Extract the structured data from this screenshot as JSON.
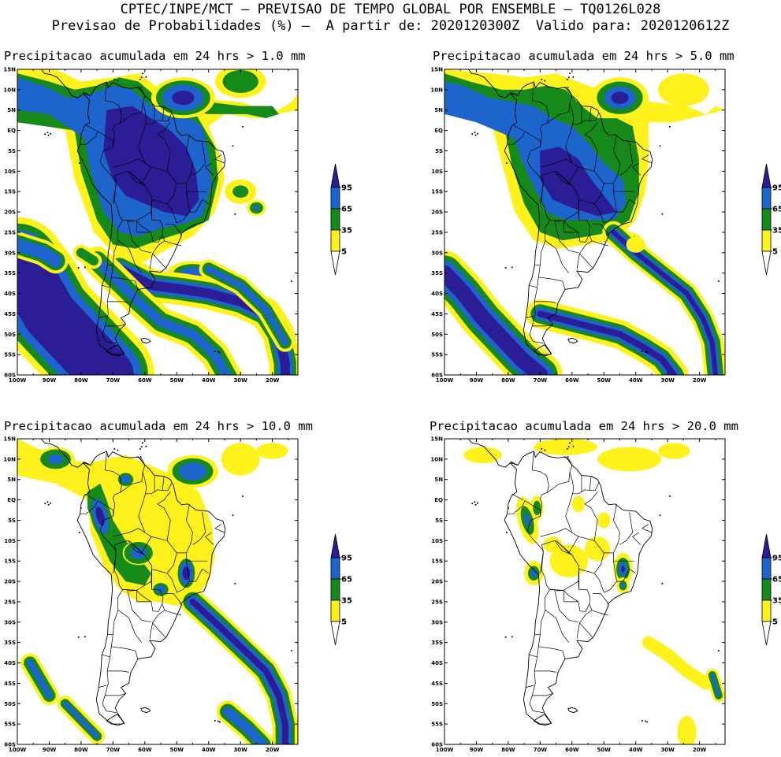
{
  "header": {
    "line1": "CPTEC/INPE/MCT – PREVISAO DE TEMPO GLOBAL POR ENSEMBLE – TQ0126L028",
    "line2": "Previsao de Probabilidades (%) –  A partir de: 2020120300Z  Valido para: 2020120612Z"
  },
  "axes": {
    "lat_labels": [
      "15N",
      "10N",
      "5N",
      "EQ",
      "5S",
      "10S",
      "15S",
      "20S",
      "25S",
      "30S",
      "35S",
      "40S",
      "45S",
      "50S",
      "55S",
      "60S"
    ],
    "lon_labels": [
      "100W",
      "90W",
      "80W",
      "70W",
      "60W",
      "50W",
      "40W",
      "30W",
      "20W"
    ]
  },
  "legend": {
    "labels": [
      "95",
      "65",
      "35",
      "5"
    ],
    "colors": [
      "#2a1d96",
      "#1e64cd",
      "#15891a",
      "#fff21c",
      "#ffffff"
    ]
  },
  "panels": [
    {
      "title": "Precipitacao acumulada em 24 hrs > 1.0 mm"
    },
    {
      "title": "Precipitacao acumulada em 24 hrs > 5.0 mm"
    },
    {
      "title": "Precipitacao acumulada em 24 hrs > 10.0 mm"
    },
    {
      "title": "Precipitacao acumulada em 24 hrs > 20.0 mm"
    }
  ]
}
